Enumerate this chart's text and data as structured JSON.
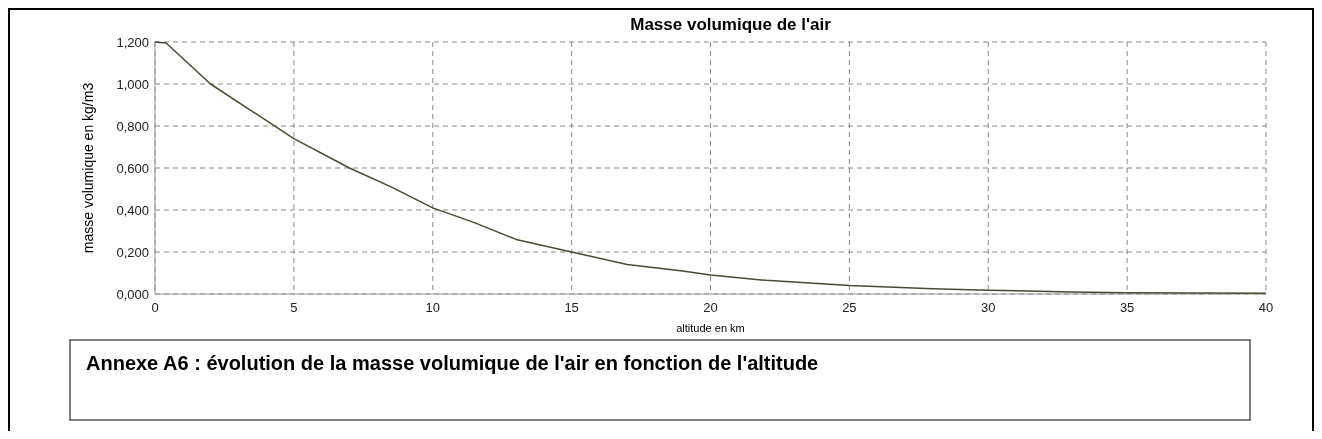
{
  "chart_data": {
    "type": "line",
    "title": "Masse volumique de l'air",
    "xlabel": "altitude en km",
    "ylabel": "masse volumique en kg/m3",
    "annotations": [
      "Annexe A6 : évolution de la masse volumique de l'air en fonction de l'altitude"
    ],
    "x": [
      0,
      0.4,
      2,
      3.5,
      5,
      7,
      8.5,
      10,
      11.5,
      13,
      15,
      17,
      19,
      20,
      22,
      25,
      28,
      30,
      33,
      35,
      40
    ],
    "series": [
      {
        "color": "#4a4a32",
        "values": [
          1.2,
          1.195,
          1.0,
          0.87,
          0.74,
          0.6,
          0.51,
          0.41,
          0.34,
          0.26,
          0.2,
          0.14,
          0.11,
          0.09,
          0.065,
          0.04,
          0.025,
          0.018,
          0.01,
          0.006,
          0.004
        ]
      }
    ],
    "xlim": [
      0,
      40
    ],
    "xticks": [
      0,
      5,
      10,
      15,
      20,
      25,
      30,
      35,
      40
    ],
    "ylim": [
      0,
      1.2
    ],
    "yticks": [
      {
        "value": 0,
        "label": "0,000"
      },
      {
        "value": 0.2,
        "label": "0,200"
      },
      {
        "value": 0.4,
        "label": "0,400"
      },
      {
        "value": 0.6,
        "label": "0,600"
      },
      {
        "value": 0.8,
        "label": "0,800"
      },
      {
        "value": 1.0,
        "label": "1,000"
      },
      {
        "value": 1.2,
        "label": "1,200"
      }
    ],
    "grid": true,
    "line_style": "solid"
  }
}
